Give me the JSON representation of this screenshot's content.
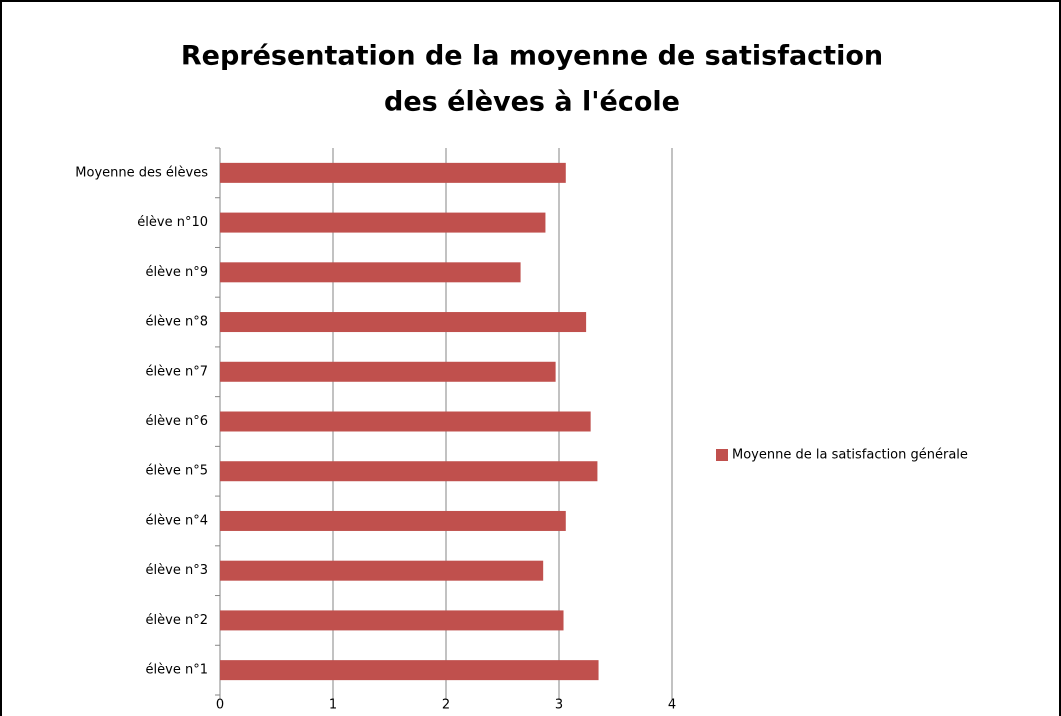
{
  "chart_data": {
    "type": "barh",
    "title": [
      "Représentation de la moyenne de satisfaction",
      "des élèves à l'école"
    ],
    "categories": [
      "élève n°1",
      "élève n°2",
      "élève n°3",
      "élève n°4",
      "élève n°5",
      "élève n°6",
      "élève n°7",
      "élève n°8",
      "élève n°9",
      "élève n°10",
      "Moyenne des élèves"
    ],
    "series": [
      {
        "name": "Moyenne de la satisfaction  générale",
        "color": "#c0504d",
        "values": [
          3.35,
          3.04,
          2.86,
          3.06,
          3.34,
          3.28,
          2.97,
          3.24,
          2.66,
          2.88,
          3.06
        ]
      }
    ],
    "xlim": [
      0,
      4
    ],
    "xticks": [
      0,
      1,
      2,
      3,
      4
    ],
    "grid": true,
    "legend": "right"
  }
}
